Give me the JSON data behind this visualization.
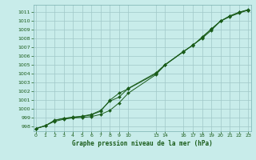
{
  "title": "Graphe pression niveau de la mer (hPa)",
  "bg_color": "#c8ecea",
  "grid_color": "#a0c8c8",
  "line_color": "#1a5c1a",
  "ylim": [
    997.5,
    1011.8
  ],
  "yticks": [
    998,
    999,
    1000,
    1001,
    1002,
    1003,
    1004,
    1005,
    1006,
    1007,
    1008,
    1009,
    1010,
    1011
  ],
  "xlim": [
    -0.3,
    23.3
  ],
  "xticks": [
    0,
    1,
    2,
    3,
    4,
    5,
    6,
    7,
    8,
    9,
    10,
    13,
    14,
    16,
    17,
    18,
    19,
    20,
    21,
    22,
    23
  ],
  "x_data": [
    0,
    1,
    2,
    3,
    4,
    5,
    6,
    7,
    8,
    9,
    10,
    13,
    14,
    16,
    17,
    18,
    19,
    20,
    21,
    22,
    23
  ],
  "y_line1": [
    997.8,
    998.15,
    998.6,
    998.85,
    999.0,
    999.05,
    999.15,
    999.4,
    999.85,
    1000.7,
    1001.8,
    1003.9,
    1005.0,
    1006.5,
    1007.25,
    1008.0,
    1008.9,
    1009.95,
    1010.45,
    1010.85,
    1011.2
  ],
  "y_line2": [
    997.8,
    998.1,
    998.75,
    998.95,
    999.05,
    999.15,
    999.35,
    999.75,
    1001.0,
    1001.8,
    1002.3,
    1004.0,
    1005.0,
    1006.55,
    1007.2,
    1008.15,
    1009.05,
    1009.95,
    1010.55,
    1010.95,
    1011.25
  ],
  "y_line3": [
    997.8,
    998.1,
    998.7,
    998.95,
    999.1,
    999.2,
    999.4,
    999.85,
    1000.9,
    1001.35,
    1002.35,
    1004.1,
    1005.05,
    1006.5,
    1007.25,
    1008.05,
    1009.05,
    1009.95,
    1010.5,
    1010.95,
    1011.2
  ]
}
